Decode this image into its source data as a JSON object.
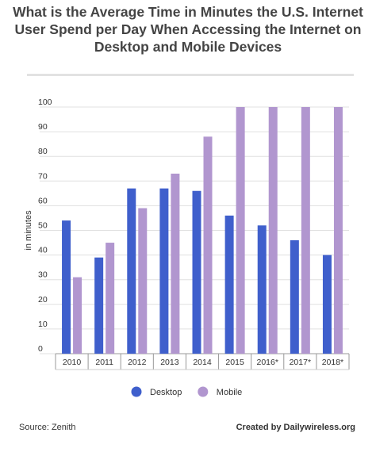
{
  "title": "What is the Average Time in Minutes the U.S. Internet User Spend per Day When Accessing the Internet on Desktop and Mobile Devices",
  "source": "Source: Zenith",
  "credit": "Created by Dailywireless.org",
  "colors": {
    "desktop": "#3f5fcc",
    "mobile": "#b196cf",
    "grid": "#e0e0e0"
  },
  "chart_data": {
    "type": "bar",
    "title": "What is the Average Time in Minutes the U.S. Internet User Spend per Day When Accessing the Internet on Desktop and Mobile Devices",
    "ylabel": "in minutes",
    "xlabel": "",
    "ylim": [
      0,
      100
    ],
    "yticks": [
      0,
      10,
      20,
      30,
      40,
      50,
      60,
      70,
      80,
      90,
      100
    ],
    "grid": true,
    "legend_position": "bottom",
    "categories": [
      "2010",
      "2011",
      "2012",
      "2013",
      "2014",
      "2015",
      "2016*",
      "2017*",
      "2018*"
    ],
    "series": [
      {
        "name": "Desktop",
        "values": [
          54,
          39,
          67,
          67,
          66,
          56,
          52,
          46,
          40
        ]
      },
      {
        "name": "Mobile",
        "values": [
          31,
          45,
          59,
          73,
          88,
          100,
          100,
          100,
          100
        ]
      }
    ]
  }
}
